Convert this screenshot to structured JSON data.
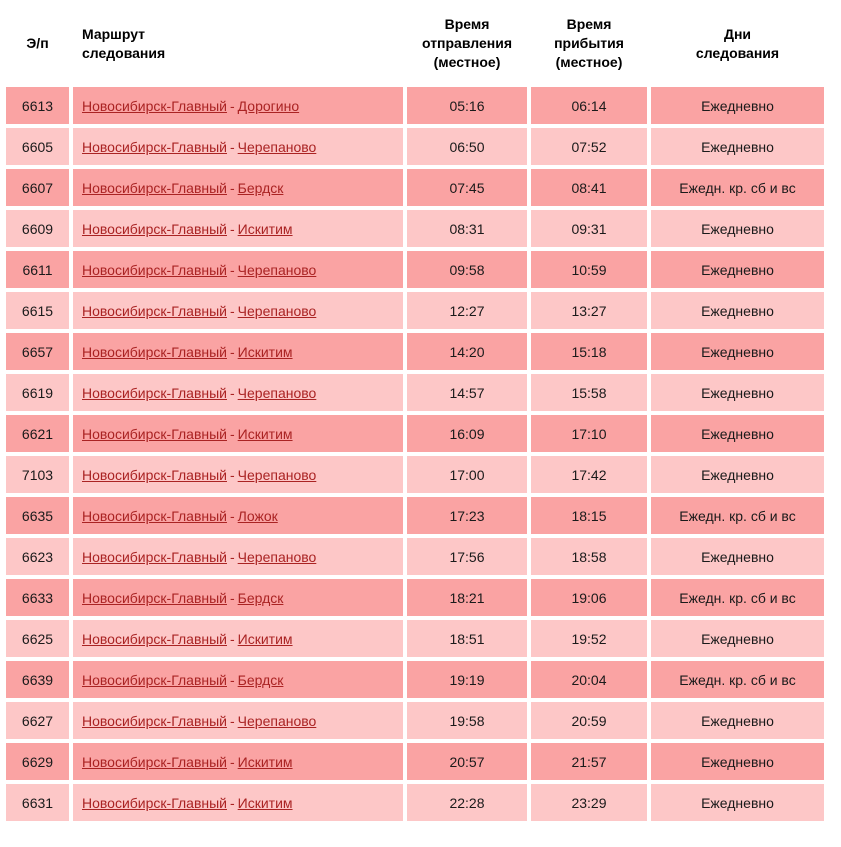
{
  "colors": {
    "background": "#ffffff",
    "row_dark": "#faa3a3",
    "row_light": "#fdc7c7",
    "link": "#aa2323",
    "text": "#1a1a1a",
    "header_text": "#000000"
  },
  "table": {
    "columns": [
      {
        "id": "num",
        "lines": [
          "Э/п"
        ]
      },
      {
        "id": "route",
        "lines": [
          "Маршрут",
          "следования"
        ]
      },
      {
        "id": "departure",
        "lines": [
          "Время",
          "отправления",
          "(местное)"
        ]
      },
      {
        "id": "arrival",
        "lines": [
          "Время",
          "прибытия",
          "(местное)"
        ]
      },
      {
        "id": "days",
        "lines": [
          "Дни",
          "следования"
        ]
      }
    ],
    "route_separator": "-",
    "rows": [
      {
        "num": "6613",
        "from": "Новосибирск-Главный",
        "to": "Дорогино",
        "dep": "05:16",
        "arr": "06:14",
        "days": "Ежедневно"
      },
      {
        "num": "6605",
        "from": "Новосибирск-Главный",
        "to": "Черепаново",
        "dep": "06:50",
        "arr": "07:52",
        "days": "Ежедневно"
      },
      {
        "num": "6607",
        "from": "Новосибирск-Главный",
        "to": "Бердск",
        "dep": "07:45",
        "arr": "08:41",
        "days": "Ежедн. кр. сб и вс"
      },
      {
        "num": "6609",
        "from": "Новосибирск-Главный",
        "to": "Искитим",
        "dep": "08:31",
        "arr": "09:31",
        "days": "Ежедневно"
      },
      {
        "num": "6611",
        "from": "Новосибирск-Главный",
        "to": "Черепаново",
        "dep": "09:58",
        "arr": "10:59",
        "days": "Ежедневно"
      },
      {
        "num": "6615",
        "from": "Новосибирск-Главный",
        "to": "Черепаново",
        "dep": "12:27",
        "arr": "13:27",
        "days": "Ежедневно"
      },
      {
        "num": "6657",
        "from": "Новосибирск-Главный",
        "to": "Искитим",
        "dep": "14:20",
        "arr": "15:18",
        "days": "Ежедневно"
      },
      {
        "num": "6619",
        "from": "Новосибирск-Главный",
        "to": "Черепаново",
        "dep": "14:57",
        "arr": "15:58",
        "days": "Ежедневно"
      },
      {
        "num": "6621",
        "from": "Новосибирск-Главный",
        "to": "Искитим",
        "dep": "16:09",
        "arr": "17:10",
        "days": "Ежедневно"
      },
      {
        "num": "7103",
        "from": "Новосибирск-Главный",
        "to": "Черепаново",
        "dep": "17:00",
        "arr": "17:42",
        "days": "Ежедневно"
      },
      {
        "num": "6635",
        "from": "Новосибирск-Главный",
        "to": "Ложок",
        "dep": "17:23",
        "arr": "18:15",
        "days": "Ежедн. кр. сб и вс"
      },
      {
        "num": "6623",
        "from": "Новосибирск-Главный",
        "to": "Черепаново",
        "dep": "17:56",
        "arr": "18:58",
        "days": "Ежедневно"
      },
      {
        "num": "6633",
        "from": "Новосибирск-Главный",
        "to": "Бердск",
        "dep": "18:21",
        "arr": "19:06",
        "days": "Ежедн. кр. сб и вс"
      },
      {
        "num": "6625",
        "from": "Новосибирск-Главный",
        "to": "Искитим",
        "dep": "18:51",
        "arr": "19:52",
        "days": "Ежедневно"
      },
      {
        "num": "6639",
        "from": "Новосибирск-Главный",
        "to": "Бердск",
        "dep": "19:19",
        "arr": "20:04",
        "days": "Ежедн. кр. сб и вс"
      },
      {
        "num": "6627",
        "from": "Новосибирск-Главный",
        "to": "Черепаново",
        "dep": "19:58",
        "arr": "20:59",
        "days": "Ежедневно"
      },
      {
        "num": "6629",
        "from": "Новосибирск-Главный",
        "to": "Искитим",
        "dep": "20:57",
        "arr": "21:57",
        "days": "Ежедневно"
      },
      {
        "num": "6631",
        "from": "Новосибирск-Главный",
        "to": "Искитим",
        "dep": "22:28",
        "arr": "23:29",
        "days": "Ежедневно"
      }
    ]
  }
}
